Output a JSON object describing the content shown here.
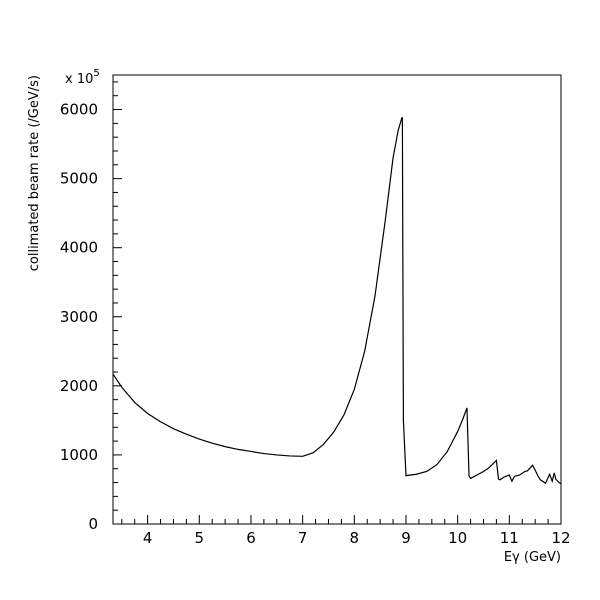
{
  "chart_data": {
    "type": "line",
    "xlabel": "Eγ (GeV)",
    "ylabel": "collimated beam rate (/GeV/s)",
    "y_multiplier": "x 10",
    "y_multiplier_exponent": "5",
    "xlim": [
      3.33,
      12
    ],
    "ylim": [
      0,
      6500
    ],
    "x_ticks": [
      4,
      5,
      6,
      7,
      8,
      9,
      10,
      11,
      12
    ],
    "y_ticks": [
      0,
      1000,
      2000,
      3000,
      4000,
      5000,
      6000
    ],
    "grid": false,
    "legend": "none",
    "line_color": "#000000",
    "series": [
      {
        "x": [
          3.33,
          3.5,
          3.75,
          4.0,
          4.25,
          4.5,
          4.75,
          5.0,
          5.25,
          5.5,
          5.75,
          6.0,
          6.25,
          6.5,
          6.75,
          7.0,
          7.2,
          7.4,
          7.6,
          7.8,
          8.0,
          8.2,
          8.4,
          8.6,
          8.75,
          8.85,
          8.92,
          8.93,
          8.95,
          9.0,
          9.2,
          9.4,
          9.6,
          9.8,
          10.0,
          10.1,
          10.18,
          10.22,
          10.25,
          10.35,
          10.5,
          10.6,
          10.75,
          10.79,
          10.82,
          10.9,
          11.0,
          11.05,
          11.1,
          11.2,
          11.3,
          11.35,
          11.45,
          11.5,
          11.55,
          11.6,
          11.7,
          11.78,
          11.83,
          11.87,
          11.9,
          11.95,
          12.0
        ],
        "y": [
          2170,
          1980,
          1760,
          1600,
          1480,
          1380,
          1300,
          1230,
          1170,
          1120,
          1080,
          1050,
          1020,
          1000,
          985,
          980,
          1030,
          1150,
          1330,
          1580,
          1950,
          2500,
          3300,
          4400,
          5300,
          5700,
          5880,
          5880,
          1500,
          700,
          720,
          760,
          860,
          1050,
          1340,
          1520,
          1680,
          700,
          660,
          700,
          760,
          810,
          920,
          650,
          640,
          680,
          710,
          620,
          690,
          710,
          760,
          770,
          850,
          780,
          700,
          640,
          590,
          720,
          620,
          740,
          650,
          610,
          580
        ]
      }
    ]
  }
}
